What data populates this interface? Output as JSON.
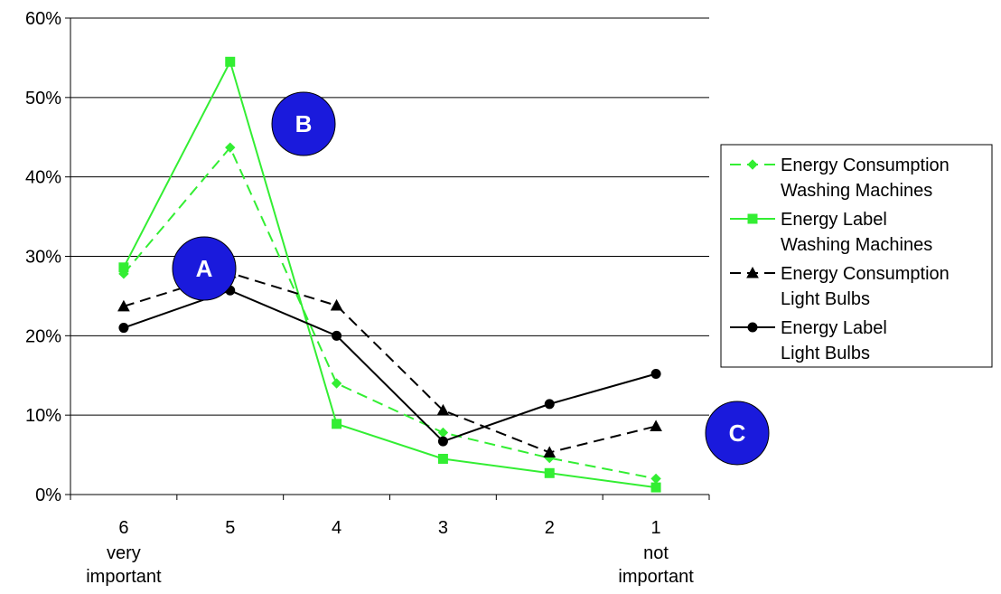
{
  "chart_data": {
    "type": "line",
    "categories": [
      {
        "value": "6",
        "sub": "very important"
      },
      {
        "value": "5",
        "sub": ""
      },
      {
        "value": "4",
        "sub": ""
      },
      {
        "value": "3",
        "sub": ""
      },
      {
        "value": "2",
        "sub": ""
      },
      {
        "value": "1",
        "sub": "not important"
      }
    ],
    "ylim": [
      0,
      60
    ],
    "yticks": [
      0,
      10,
      20,
      30,
      40,
      50,
      60
    ],
    "ytick_labels": [
      "0%",
      "10%",
      "20%",
      "30%",
      "40%",
      "50%",
      "60%"
    ],
    "grid": true,
    "legend_position": "right",
    "series": [
      {
        "name_line1": "Energy Consumption",
        "name_line2": "Washing Machines",
        "values": [
          27.8,
          43.7,
          14.0,
          7.8,
          4.6,
          2.0
        ],
        "color": "#33ee33",
        "dash": "dashed",
        "marker": "diamond"
      },
      {
        "name_line1": "Energy Label",
        "name_line2": "Washing Machines",
        "values": [
          28.6,
          54.5,
          8.9,
          4.5,
          2.7,
          0.9
        ],
        "color": "#33ee33",
        "dash": "solid",
        "marker": "square"
      },
      {
        "name_line1": "Energy Consumption",
        "name_line2": "Light Bulbs",
        "values": [
          23.7,
          27.9,
          23.8,
          10.6,
          5.3,
          8.6
        ],
        "color": "#000000",
        "dash": "dashed",
        "marker": "triangle"
      },
      {
        "name_line1": "Energy Label",
        "name_line2": "Light Bulbs",
        "values": [
          21.0,
          25.7,
          20.0,
          6.7,
          11.4,
          15.2
        ],
        "color": "#000000",
        "dash": "solid",
        "marker": "circle"
      }
    ],
    "annotations": [
      {
        "label": "A",
        "color": "#1a1adc"
      },
      {
        "label": "B",
        "color": "#1a1adc"
      },
      {
        "label": "C",
        "color": "#1a1adc"
      }
    ]
  }
}
